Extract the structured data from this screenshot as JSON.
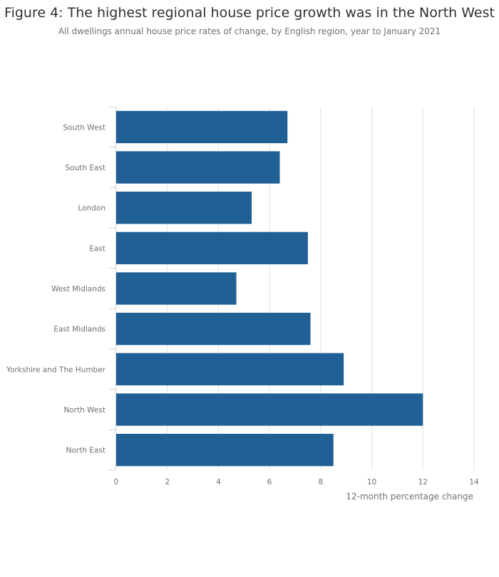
{
  "chart_data": {
    "type": "bar",
    "orientation": "horizontal",
    "title": "Figure 4: The highest regional house price growth was in the North West",
    "subtitle": "All dwellings annual house price rates of change, by English region, year to January 2021",
    "categories": [
      "South West",
      "South East",
      "London",
      "East",
      "West Midlands",
      "East Midlands",
      "Yorkshire and The Humber",
      "North West",
      "North East"
    ],
    "values": [
      6.7,
      6.4,
      5.3,
      7.5,
      4.7,
      7.6,
      8.9,
      12.0,
      8.5
    ],
    "xlabel": "12-month percentage change",
    "ylabel": "",
    "xlim": [
      0,
      14
    ],
    "xticks": [
      0,
      2,
      4,
      6,
      8,
      10,
      12,
      14
    ],
    "grid": true,
    "bar_color": "#206095"
  }
}
